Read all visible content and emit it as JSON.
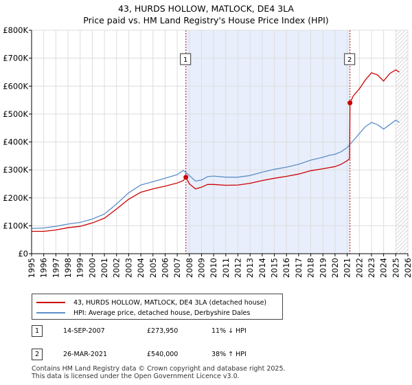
{
  "chart_data": {
    "type": "line",
    "title": "43, HURDS HOLLOW, MATLOCK, DE4 3LA",
    "subtitle": "Price paid vs. HM Land Registry's House Price Index (HPI)",
    "xlabel": "",
    "ylabel": "",
    "xlim": [
      1995,
      2026
    ],
    "ylim": [
      0,
      800000
    ],
    "x_ticks": [
      "1995",
      "1996",
      "1997",
      "1998",
      "1999",
      "2000",
      "2001",
      "2002",
      "2003",
      "2004",
      "2005",
      "2006",
      "2007",
      "2008",
      "2009",
      "2010",
      "2011",
      "2012",
      "2013",
      "2014",
      "2015",
      "2016",
      "2017",
      "2018",
      "2019",
      "2020",
      "2021",
      "2022",
      "2023",
      "2024",
      "2025",
      "2026"
    ],
    "y_ticks": [
      {
        "value": 0,
        "label": "£0"
      },
      {
        "value": 100000,
        "label": "£100K"
      },
      {
        "value": 200000,
        "label": "£200K"
      },
      {
        "value": 300000,
        "label": "£300K"
      },
      {
        "value": 400000,
        "label": "£400K"
      },
      {
        "value": 500000,
        "label": "£500K"
      },
      {
        "value": 600000,
        "label": "£600K"
      },
      {
        "value": 700000,
        "label": "£700K"
      },
      {
        "value": 800000,
        "label": "£800K"
      }
    ],
    "grid": true,
    "shaded_range": [
      2007.71,
      2021.23
    ],
    "hatched_from": 2025.0,
    "series": [
      {
        "name": "43, HURDS HOLLOW, MATLOCK, DE4 3LA (detached house)",
        "color": "#cc0000",
        "x": [
          1995.0,
          1996.0,
          1997.0,
          1998.0,
          1999.0,
          2000.0,
          2001.0,
          2002.0,
          2003.0,
          2004.0,
          2005.0,
          2006.0,
          2007.0,
          2007.5,
          2007.71,
          2008.0,
          2008.5,
          2009.0,
          2009.5,
          2010.0,
          2011.0,
          2012.0,
          2013.0,
          2014.0,
          2015.0,
          2016.0,
          2017.0,
          2018.0,
          2019.0,
          2019.5,
          2020.0,
          2020.5,
          2021.0,
          2021.2,
          2021.23,
          2021.5,
          2022.0,
          2022.5,
          2023.0,
          2023.5,
          2024.0,
          2024.5,
          2025.0,
          2025.3
        ],
        "y": [
          80000,
          80000,
          85000,
          93000,
          98000,
          110000,
          127000,
          160000,
          195000,
          220000,
          232000,
          242000,
          253000,
          262000,
          273950,
          250000,
          232000,
          238000,
          248000,
          248000,
          245000,
          246000,
          252000,
          262000,
          270000,
          277000,
          285000,
          297000,
          304000,
          308000,
          312000,
          320000,
          333000,
          340000,
          540000,
          565000,
          590000,
          622000,
          648000,
          640000,
          618000,
          645000,
          658000,
          650000
        ]
      },
      {
        "name": "HPI: Average price, detached house, Derbyshire Dales",
        "color": "#5b8fc9",
        "x": [
          1995.0,
          1996.0,
          1997.0,
          1998.0,
          1999.0,
          2000.0,
          2001.0,
          2002.0,
          2003.0,
          2004.0,
          2005.0,
          2006.0,
          2007.0,
          2007.5,
          2008.0,
          2008.5,
          2009.0,
          2009.5,
          2010.0,
          2011.0,
          2012.0,
          2013.0,
          2014.0,
          2015.0,
          2016.0,
          2017.0,
          2018.0,
          2019.0,
          2019.5,
          2020.0,
          2020.5,
          2021.0,
          2021.5,
          2022.0,
          2022.5,
          2023.0,
          2023.5,
          2024.0,
          2024.5,
          2025.0,
          2025.3
        ],
        "y": [
          90000,
          92000,
          98000,
          106000,
          112000,
          124000,
          142000,
          178000,
          218000,
          246000,
          258000,
          270000,
          283000,
          298000,
          280000,
          260000,
          264000,
          276000,
          278000,
          274000,
          274000,
          280000,
          292000,
          302000,
          310000,
          320000,
          335000,
          345000,
          352000,
          356000,
          365000,
          380000,
          405000,
          430000,
          455000,
          470000,
          462000,
          446000,
          462000,
          478000,
          470000
        ]
      }
    ],
    "annotations": [
      {
        "label": "1",
        "x": 2007.71,
        "y": 273950
      },
      {
        "label": "2",
        "x": 2021.23,
        "y": 540000
      }
    ]
  },
  "legend": {
    "property_label": "43, HURDS HOLLOW, MATLOCK, DE4 3LA (detached house)",
    "hpi_label": "HPI: Average price, detached house, Derbyshire Dales"
  },
  "sales": [
    {
      "num": "1",
      "date": "14-SEP-2007",
      "price": "£273,950",
      "hpi": "11% ↓ HPI"
    },
    {
      "num": "2",
      "date": "26-MAR-2021",
      "price": "£540,000",
      "hpi": "38% ↑ HPI"
    }
  ],
  "footer": {
    "line1": "Contains HM Land Registry data © Crown copyright and database right 2025.",
    "line2": "This data is licensed under the Open Government Licence v3.0."
  },
  "colors": {
    "property": "#cc0000",
    "hpi": "#5b8fc9",
    "shade": "#e8eefb",
    "grid": "#dddddd"
  }
}
